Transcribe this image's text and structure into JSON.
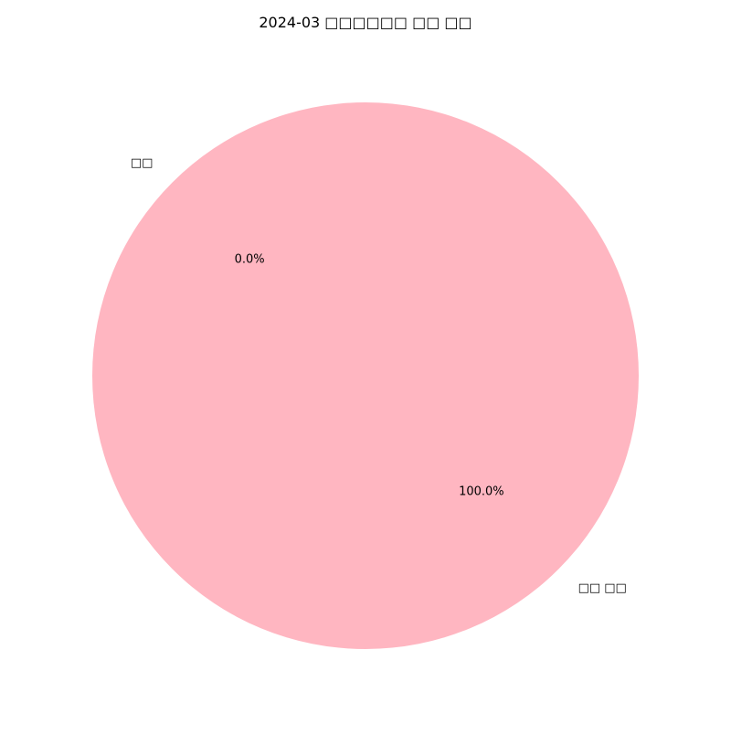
{
  "chart_data": {
    "type": "pie",
    "title": "2024-03 □□□□□□ □□ □□",
    "slices": [
      {
        "label": "□□ □□",
        "value": 100.0,
        "pct_label": "100.0%",
        "color": "#ffb6c1"
      },
      {
        "label": "□□",
        "value": 0.0,
        "pct_label": "0.0%",
        "color": "#ffb6c1"
      }
    ],
    "colors": {
      "background": "#ffffff",
      "text": "#000000"
    }
  }
}
